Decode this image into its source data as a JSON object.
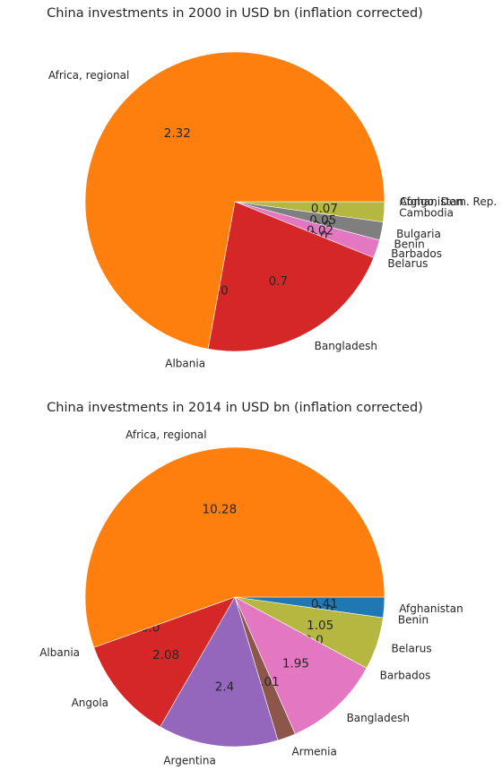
{
  "chart_data": [
    {
      "type": "pie",
      "title": "China investments in 2000 in USD bn (inflation corrected)",
      "start_angle_deg": 0,
      "direction": "clockwise",
      "slices": [
        {
          "label": "Afghanistan",
          "value": 0.0,
          "display": "0.0",
          "color": "#1f77b4"
        },
        {
          "label": "Congo, Dem. Rep.",
          "value": 0.0,
          "display": "0.0",
          "color": "#2a9fb0"
        },
        {
          "label": "Cambodia",
          "value": 0.07,
          "display": "0.07",
          "color": "#b5b740"
        },
        {
          "label": "Bulgaria",
          "value": 0.05,
          "display": "0.05",
          "color": "#7f7f7f"
        },
        {
          "label": "Benin",
          "value": 0.0,
          "display": "0.0",
          "color": "#8c564b"
        },
        {
          "label": "Barbados",
          "value": 0.02,
          "display": "0.02",
          "color": "#e377c2"
        },
        {
          "label": "Belarus",
          "value": 0.0,
          "display": "0.0",
          "color": "#9467bd"
        },
        {
          "label": "Bangladesh",
          "value": 0.7,
          "display": "0.7",
          "color": "#d62728"
        },
        {
          "label": "Albania",
          "value": 0.0,
          "display": "0.0",
          "color": "#d62728"
        },
        {
          "label": "Africa, regional",
          "value": 2.32,
          "display": "2.32",
          "color": "#ff7f0e"
        }
      ]
    },
    {
      "type": "pie",
      "title": "China investments in 2014 in USD bn (inflation corrected)",
      "start_angle_deg": 0,
      "direction": "clockwise",
      "slices": [
        {
          "label": "Afghanistan",
          "value": 0.41,
          "display": "0.41",
          "color": "#1f77b4"
        },
        {
          "label": "Benin",
          "value": 0.0,
          "display": "0.0",
          "color": "#8c564b"
        },
        {
          "label": "Belarus",
          "value": 1.05,
          "display": "1.05",
          "color": "#b5b740"
        },
        {
          "label": "Barbados",
          "value": 0.0,
          "display": "0.0",
          "color": "#7f7f7f"
        },
        {
          "label": "Bangladesh",
          "value": 1.95,
          "display": "1.95",
          "color": "#e377c2"
        },
        {
          "label": "Armenia",
          "value": 0.01,
          "display": "0.01",
          "color": "#8c564b"
        },
        {
          "label": "Argentina",
          "value": 2.4,
          "display": "2.4",
          "color": "#9467bd"
        },
        {
          "label": "Angola",
          "value": 2.08,
          "display": "2.08",
          "color": "#d62728"
        },
        {
          "label": "Albania",
          "value": 0.0,
          "display": "0.0",
          "color": "#d62728"
        },
        {
          "label": "Africa, regional",
          "value": 10.28,
          "display": "10.28",
          "color": "#ff7f0e"
        }
      ]
    }
  ]
}
